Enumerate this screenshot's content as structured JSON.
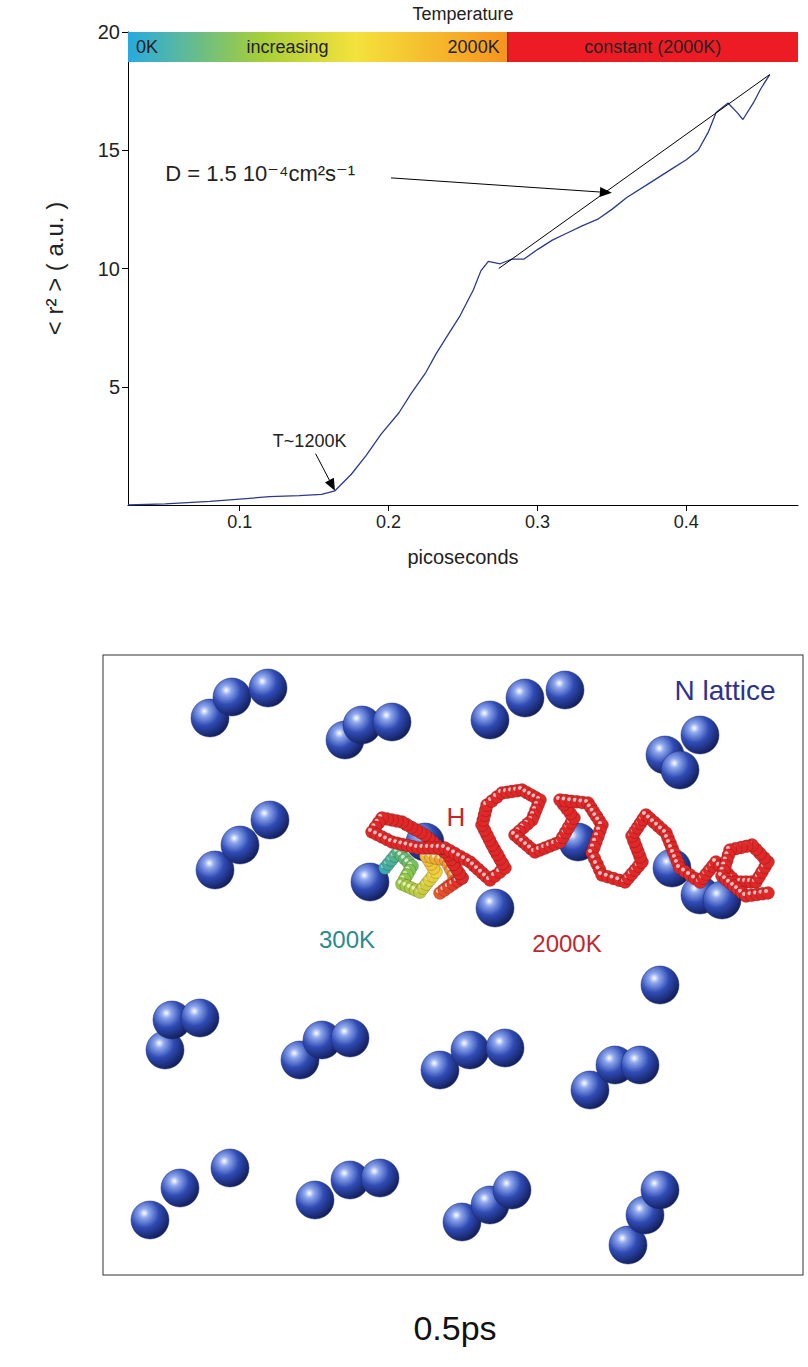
{
  "chart_data": {
    "type": "line",
    "title": "Temperature",
    "xlabel": "picoseconds",
    "ylabel": "< r² > ( a.u. )",
    "x": [
      0.025,
      0.05,
      0.08,
      0.1,
      0.12,
      0.14,
      0.155,
      0.164,
      0.175,
      0.185,
      0.195,
      0.207,
      0.215,
      0.225,
      0.232,
      0.24,
      0.248,
      0.257,
      0.262,
      0.267,
      0.275,
      0.283,
      0.291,
      0.3,
      0.31,
      0.32,
      0.33,
      0.341,
      0.35,
      0.36,
      0.375,
      0.39,
      0.4,
      0.408,
      0.415,
      0.42,
      0.428,
      0.434,
      0.438,
      0.445,
      0.45,
      0.456
    ],
    "values": [
      0,
      0.05,
      0.15,
      0.25,
      0.35,
      0.4,
      0.45,
      0.6,
      1.3,
      2.1,
      3.0,
      3.9,
      4.7,
      5.6,
      6.4,
      7.2,
      8.0,
      9.1,
      9.9,
      10.3,
      10.2,
      10.4,
      10.4,
      10.8,
      11.2,
      11.5,
      11.8,
      12.1,
      12.5,
      13.0,
      13.6,
      14.2,
      14.6,
      15.0,
      15.8,
      16.6,
      17.0,
      16.6,
      16.3,
      17.0,
      17.6,
      18.2
    ],
    "color": "#2b3a8c",
    "xlim": [
      0.025,
      0.475
    ],
    "xticks": [
      0.1,
      0.2,
      0.3,
      0.4
    ],
    "ylim": [
      0,
      20
    ],
    "yticks": [
      5,
      10,
      15,
      20
    ],
    "grid": false,
    "temperature_bar": {
      "labels": [
        "0K",
        "increasing",
        "2000K"
      ],
      "constant_label": "constant (2000K)",
      "ramp_end": 0.28
    },
    "fit_line": {
      "x": [
        0.274,
        0.456
      ],
      "values": [
        10,
        18.2
      ],
      "color": "#000000"
    },
    "annotations": [
      {
        "text": "D = 1.5 10⁻⁴cm²s⁻¹",
        "x": 0.05,
        "y": 14,
        "arrow_to": [
          0.35,
          13.2
        ]
      },
      {
        "text": "T~1200K",
        "x": 0.147,
        "y": 2.7,
        "arrow_to": [
          0.164,
          0.6
        ]
      }
    ]
  },
  "diagram": {
    "title": "N lattice",
    "particle": "H",
    "start_label": "300K",
    "end_label": "2000K"
  },
  "caption": "0.5ps"
}
